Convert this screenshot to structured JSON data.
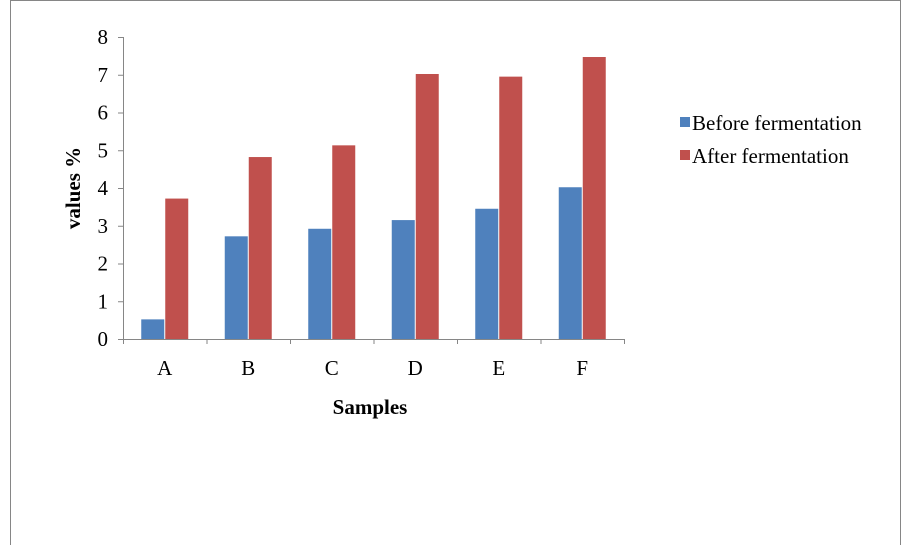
{
  "chart_data": {
    "type": "bar",
    "title": "",
    "xlabel": "Samples",
    "ylabel": "values %",
    "categories": [
      "A",
      "B",
      "C",
      "D",
      "E",
      "F"
    ],
    "ylim": [
      0,
      8
    ],
    "yticks": [
      "0",
      "1",
      "2",
      "3",
      "4",
      "5",
      "6",
      "7",
      "8"
    ],
    "grid": false,
    "legend_position": "right",
    "series": [
      {
        "name": "Before fermentation",
        "color": "#4F81BD",
        "values": [
          0.52,
          2.72,
          2.92,
          3.15,
          3.45,
          4.02
        ]
      },
      {
        "name": "After fermentation",
        "color": "#C0504D",
        "values": [
          3.72,
          4.82,
          5.13,
          7.02,
          6.95,
          7.47
        ]
      }
    ]
  }
}
